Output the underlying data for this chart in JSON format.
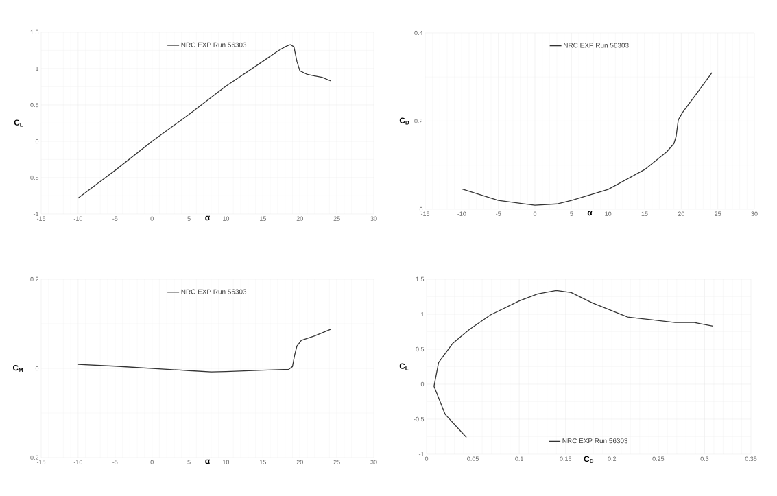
{
  "chart_data": [
    {
      "type": "line",
      "xlabel": "α",
      "ylabel": "C$_{L}$",
      "xlim": [
        -15,
        30
      ],
      "ylim": [
        -1,
        1.5
      ],
      "xticks": [
        -15,
        -10,
        -5,
        0,
        5,
        10,
        15,
        20,
        25,
        30
      ],
      "yticks": [
        -1,
        -0.5,
        0,
        0.5,
        1,
        1.5
      ],
      "grid": true,
      "legend": "top",
      "series": [
        {
          "name": "NRC EXP Run 56303",
          "color": "#333333",
          "x": [
            -10,
            -5,
            0,
            5,
            10,
            15,
            17,
            18,
            18.7,
            19.2,
            19.6,
            20,
            21,
            22,
            23,
            24.2
          ],
          "values": [
            -0.78,
            -0.4,
            0.0,
            0.37,
            0.76,
            1.1,
            1.24,
            1.3,
            1.33,
            1.3,
            1.1,
            0.97,
            0.92,
            0.9,
            0.88,
            0.83
          ]
        }
      ]
    },
    {
      "type": "line",
      "xlabel": "α",
      "ylabel": "C$_{D}$",
      "xlim": [
        -15,
        30
      ],
      "ylim": [
        0,
        0.4
      ],
      "xticks": [
        -15,
        -10,
        -5,
        0,
        5,
        10,
        15,
        20,
        25,
        30
      ],
      "yticks": [
        0,
        0.2,
        0.4
      ],
      "grid": true,
      "legend": "top",
      "series": [
        {
          "name": "NRC EXP Run 56303",
          "color": "#333333",
          "x": [
            -10,
            -5,
            0,
            3,
            5,
            10,
            15,
            18,
            19,
            19.3,
            19.6,
            20.2,
            22,
            24.2
          ],
          "values": [
            0.046,
            0.02,
            0.009,
            0.012,
            0.02,
            0.045,
            0.09,
            0.13,
            0.149,
            0.165,
            0.203,
            0.22,
            0.26,
            0.31
          ]
        }
      ]
    },
    {
      "type": "line",
      "xlabel": "α",
      "ylabel": "C$_{M}$",
      "xlim": [
        -15,
        30
      ],
      "ylim": [
        -0.2,
        0.2
      ],
      "xticks": [
        -15,
        -10,
        -5,
        0,
        5,
        10,
        15,
        20,
        25,
        30
      ],
      "yticks": [
        -0.2,
        0,
        0.2
      ],
      "grid": true,
      "legend": "top",
      "series": [
        {
          "name": "NRC EXP Run 56303",
          "color": "#333333",
          "x": [
            -10,
            -5,
            0,
            5,
            8,
            10,
            15,
            18.5,
            19,
            19.3,
            19.6,
            20.2,
            22,
            24.2
          ],
          "values": [
            0.009,
            0.005,
            0.0,
            -0.005,
            -0.008,
            -0.007,
            -0.004,
            -0.002,
            0.004,
            0.03,
            0.05,
            0.063,
            0.073,
            0.088
          ]
        }
      ]
    },
    {
      "type": "line",
      "xlabel": "C$_{D}$",
      "ylabel": "C$_{L}$",
      "xlim": [
        0,
        0.35
      ],
      "ylim": [
        -1,
        1.5
      ],
      "xticks": [
        0,
        0.05,
        0.1,
        0.15,
        0.2,
        0.25,
        0.3,
        0.35
      ],
      "yticks": [
        -1,
        -0.5,
        0,
        0.5,
        1,
        1.5
      ],
      "grid": true,
      "legend": "bottom",
      "series": [
        {
          "name": "NRC EXP Run 56303",
          "color": "#333333",
          "x": [
            0.043,
            0.02,
            0.008,
            0.013,
            0.028,
            0.046,
            0.069,
            0.1,
            0.12,
            0.14,
            0.156,
            0.179,
            0.217,
            0.243,
            0.268,
            0.289,
            0.309
          ],
          "values": [
            -0.76,
            -0.43,
            -0.03,
            0.31,
            0.58,
            0.78,
            0.99,
            1.19,
            1.29,
            1.34,
            1.31,
            1.16,
            0.96,
            0.92,
            0.88,
            0.88,
            0.83
          ]
        }
      ]
    }
  ]
}
